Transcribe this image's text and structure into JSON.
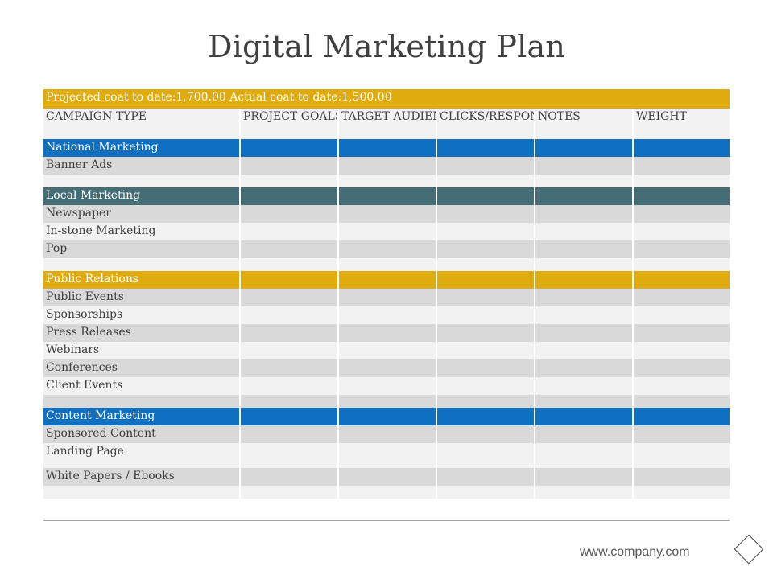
{
  "title": "Digital Marketing Plan",
  "projected_line": "Projected coat to date:1,700.00 Actual coat to date:1,500.00",
  "columns": [
    "CAMPAIGN TYPE",
    "PROJECT GOALS",
    "TARGET AUDIENCE",
    "CLICKS/RESPONSE",
    "NOTES",
    "WEIGHT"
  ],
  "sections": [
    {
      "label": "National Marketing",
      "color": "#0f6fc0",
      "items": [
        "Banner Ads",
        ""
      ]
    },
    {
      "label": "Local Marketing",
      "color": "#446d76",
      "items": [
        "Newspaper",
        "In-stone Marketing",
        "Pop",
        ""
      ]
    },
    {
      "label": "Public Relations",
      "color": "#dfab0f",
      "items": [
        "Public Events",
        "Sponsorships",
        "Press Releases",
        "Webinars",
        "Conferences",
        "Client Events",
        ""
      ]
    },
    {
      "label": "Content Marketing",
      "color": "#0f6fc0",
      "items": [
        "Sponsored Content",
        "Landing Page",
        "White Papers / Ebooks",
        ""
      ]
    }
  ],
  "footer": {
    "url": "www.company.com",
    "icon": "diamond-icon"
  }
}
